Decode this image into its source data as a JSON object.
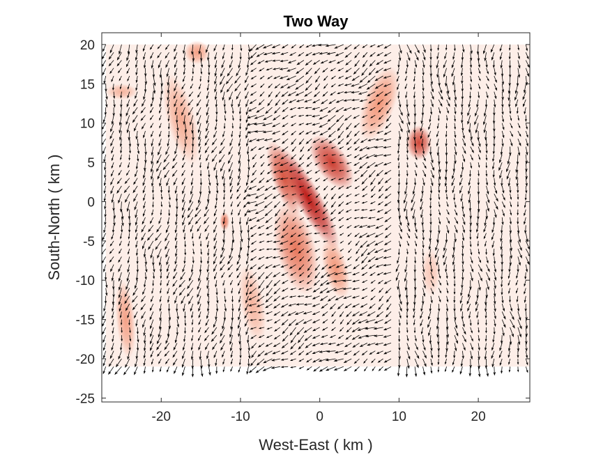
{
  "chart_data": {
    "type": "quiver",
    "title": "Two Way",
    "xlabel": "West-East ( km )",
    "ylabel": "South-North ( km )",
    "xlim": [
      -27.5,
      26.5
    ],
    "ylim": [
      -25.5,
      21.5
    ],
    "xticks": [
      -20,
      -10,
      0,
      10,
      20
    ],
    "xtick_labels": [
      "-20",
      "-10",
      "0",
      "10",
      "20"
    ],
    "yticks": [
      -25,
      -20,
      -15,
      -10,
      -5,
      0,
      5,
      10,
      15,
      20
    ],
    "ytick_labels": [
      "-25",
      "-20",
      "-15",
      "-10",
      "-5",
      "0",
      "5",
      "10",
      "15",
      "20"
    ],
    "grid": false,
    "colormap": {
      "low": "#fdeee8",
      "mid": "#f08866",
      "high": "#b80f0a"
    },
    "arrow_color": "#000000",
    "background_field": {
      "extent": {
        "x": [
          -27,
          26.5
        ],
        "y": [
          -21,
          20
        ]
      },
      "blobs": [
        {
          "cx": -1.5,
          "cy": 0.5,
          "rx": 1.6,
          "ry": 7.5,
          "angle": 30,
          "value": 1.0
        },
        {
          "cx": 1.5,
          "cy": 5.0,
          "rx": 2.0,
          "ry": 4.0,
          "angle": 35,
          "value": 0.85
        },
        {
          "cx": -4.5,
          "cy": 3.0,
          "rx": 1.5,
          "ry": 5.0,
          "angle": 20,
          "value": 0.75
        },
        {
          "cx": -3.0,
          "cy": -6.0,
          "rx": 2.5,
          "ry": 6.0,
          "angle": 15,
          "value": 0.6
        },
        {
          "cx": 2.0,
          "cy": -8.5,
          "rx": 1.5,
          "ry": 4.0,
          "angle": 15,
          "value": 0.45
        },
        {
          "cx": 12.5,
          "cy": 7.5,
          "rx": 1.6,
          "ry": 2.2,
          "angle": 0,
          "value": 0.8
        },
        {
          "cx": 7.5,
          "cy": 12.5,
          "rx": 2.0,
          "ry": 5.0,
          "angle": -20,
          "value": 0.45
        },
        {
          "cx": -15.5,
          "cy": 19.0,
          "rx": 1.6,
          "ry": 1.5,
          "angle": 0,
          "value": 0.4
        },
        {
          "cx": -17.5,
          "cy": 10.5,
          "rx": 1.8,
          "ry": 6.0,
          "angle": 15,
          "value": 0.35
        },
        {
          "cx": -12.0,
          "cy": -2.5,
          "rx": 0.6,
          "ry": 1.2,
          "angle": 0,
          "value": 0.6
        },
        {
          "cx": -24.5,
          "cy": -15.0,
          "rx": 1.2,
          "ry": 5.0,
          "angle": 5,
          "value": 0.4
        },
        {
          "cx": -8.5,
          "cy": -13.0,
          "rx": 1.5,
          "ry": 5.0,
          "angle": 10,
          "value": 0.3
        },
        {
          "cx": -25.0,
          "cy": 14.0,
          "rx": 2.0,
          "ry": 1.0,
          "angle": 0,
          "value": 0.3
        },
        {
          "cx": 14.0,
          "cy": -9.0,
          "rx": 1.2,
          "ry": 3.0,
          "angle": 0,
          "value": 0.2
        }
      ]
    },
    "vector_field": {
      "x_range": [
        -27,
        26
      ],
      "y_range": [
        -21,
        20
      ],
      "spacing": 1.0,
      "wind": {
        "west_u": -0.25,
        "west_v": -0.95,
        "mid_u": -0.85,
        "mid_v": -0.5,
        "east_u": 0.05,
        "east_v": -1.0
      },
      "scale_km": 0.95
    }
  }
}
